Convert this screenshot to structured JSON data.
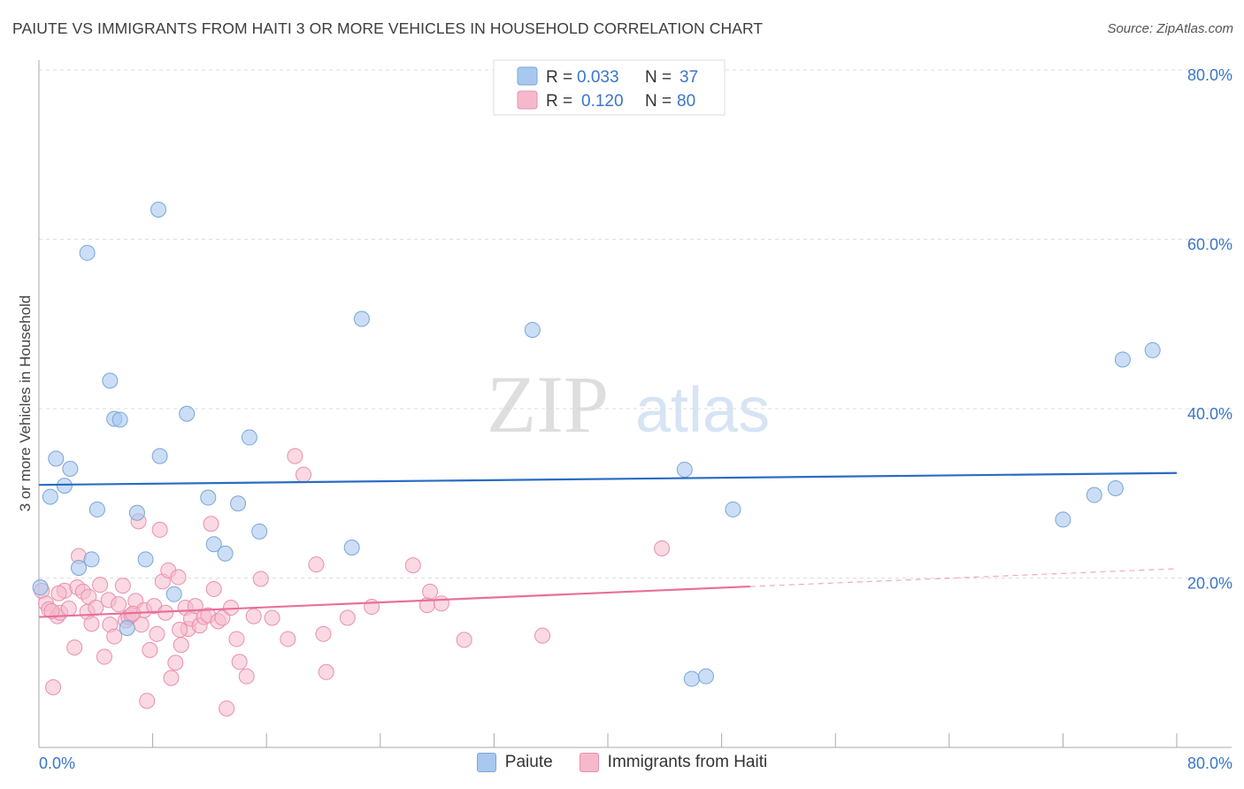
{
  "title": "PAIUTE VS IMMIGRANTS FROM HAITI 3 OR MORE VEHICLES IN HOUSEHOLD CORRELATION CHART",
  "source": "Source: ZipAtlas.com",
  "watermark": {
    "zip": "ZIP",
    "atlas": "atlas"
  },
  "colors": {
    "paiute_fill": "#a9c8f0",
    "paiute_stroke": "#7aa5d8",
    "paiute_line": "#2a6cc4",
    "haiti_fill": "#f6b9cc",
    "haiti_stroke": "#ea8fac",
    "haiti_line": "#e8709a",
    "value_text": "#3a76c8",
    "grid": "#dddddd"
  },
  "legend": [
    {
      "r_label": "R =",
      "r_value": "0.033",
      "n_label": "N =",
      "n_value": "37"
    },
    {
      "r_label": "R =",
      "r_value": "0.120",
      "n_label": "N =",
      "n_value": "80"
    }
  ],
  "chart_data": {
    "type": "scatter",
    "title": "PAIUTE VS IMMIGRANTS FROM HAITI 3 OR MORE VEHICLES IN HOUSEHOLD CORRELATION CHART",
    "xlabel": "",
    "ylabel": "3 or more Vehicles in Household",
    "xlim": [
      0,
      80
    ],
    "ylim": [
      0,
      80
    ],
    "x_tick_labels": [
      "0.0%",
      "80.0%"
    ],
    "y_tick_labels": [
      {
        "value": 20,
        "label": "20.0%"
      },
      {
        "value": 40,
        "label": "40.0%"
      },
      {
        "value": 60,
        "label": "60.0%"
      },
      {
        "value": 80,
        "label": "80.0%"
      }
    ],
    "grid": true,
    "legend_position": "top-center",
    "series": [
      {
        "name": "Paiute",
        "trend": {
          "x": [
            0,
            80
          ],
          "y": [
            31.0,
            32.4
          ]
        },
        "points": [
          [
            0.1,
            18.9
          ],
          [
            0.8,
            29.6
          ],
          [
            1.2,
            34.1
          ],
          [
            1.8,
            30.9
          ],
          [
            2.2,
            32.9
          ],
          [
            2.8,
            21.2
          ],
          [
            3.4,
            58.4
          ],
          [
            3.7,
            22.2
          ],
          [
            4.1,
            28.1
          ],
          [
            5.0,
            43.3
          ],
          [
            5.3,
            38.8
          ],
          [
            5.7,
            38.7
          ],
          [
            6.2,
            14.1
          ],
          [
            6.9,
            27.7
          ],
          [
            7.5,
            22.2
          ],
          [
            8.4,
            63.5
          ],
          [
            8.5,
            34.4
          ],
          [
            9.5,
            18.1
          ],
          [
            10.4,
            39.4
          ],
          [
            11.9,
            29.5
          ],
          [
            12.3,
            24.0
          ],
          [
            13.1,
            22.9
          ],
          [
            14.0,
            28.8
          ],
          [
            14.8,
            36.6
          ],
          [
            15.5,
            25.5
          ],
          [
            22.7,
            50.6
          ],
          [
            22.0,
            23.6
          ],
          [
            34.7,
            49.3
          ],
          [
            45.4,
            32.8
          ],
          [
            45.9,
            8.1
          ],
          [
            46.9,
            8.4
          ],
          [
            48.8,
            28.1
          ],
          [
            72.0,
            26.9
          ],
          [
            74.2,
            29.8
          ],
          [
            75.7,
            30.6
          ],
          [
            76.2,
            45.8
          ],
          [
            78.3,
            46.9
          ]
        ]
      },
      {
        "name": "Immigrants from Haiti",
        "trend": {
          "x": [
            0,
            50
          ],
          "y": [
            15.4,
            19.0
          ]
        },
        "trend_dashed": {
          "x": [
            50,
            80
          ],
          "y": [
            19.0,
            21.1
          ]
        },
        "points": [
          [
            0.2,
            18.5
          ],
          [
            0.5,
            17.0
          ],
          [
            0.7,
            16.3
          ],
          [
            1.0,
            7.1
          ],
          [
            1.3,
            15.5
          ],
          [
            1.5,
            15.9
          ],
          [
            1.8,
            18.5
          ],
          [
            2.1,
            16.4
          ],
          [
            2.5,
            11.8
          ],
          [
            2.7,
            18.9
          ],
          [
            2.8,
            22.6
          ],
          [
            3.1,
            18.4
          ],
          [
            3.4,
            16.0
          ],
          [
            3.5,
            17.8
          ],
          [
            3.7,
            14.6
          ],
          [
            4.0,
            16.5
          ],
          [
            4.3,
            19.2
          ],
          [
            4.6,
            10.7
          ],
          [
            4.9,
            17.4
          ],
          [
            5.0,
            14.5
          ],
          [
            5.3,
            13.1
          ],
          [
            5.6,
            16.9
          ],
          [
            5.9,
            19.1
          ],
          [
            6.1,
            15.0
          ],
          [
            6.3,
            15.4
          ],
          [
            6.5,
            15.6
          ],
          [
            6.8,
            17.3
          ],
          [
            7.0,
            26.7
          ],
          [
            7.2,
            14.5
          ],
          [
            7.4,
            16.2
          ],
          [
            7.6,
            5.5
          ],
          [
            7.8,
            11.5
          ],
          [
            8.1,
            16.7
          ],
          [
            8.3,
            13.4
          ],
          [
            8.5,
            25.7
          ],
          [
            8.7,
            19.6
          ],
          [
            8.9,
            15.9
          ],
          [
            9.1,
            20.9
          ],
          [
            9.3,
            8.2
          ],
          [
            9.6,
            10.0
          ],
          [
            9.8,
            20.1
          ],
          [
            10.0,
            12.1
          ],
          [
            10.3,
            16.5
          ],
          [
            10.5,
            14.0
          ],
          [
            10.7,
            15.2
          ],
          [
            11.0,
            16.7
          ],
          [
            11.3,
            14.4
          ],
          [
            11.6,
            15.4
          ],
          [
            11.9,
            15.6
          ],
          [
            12.1,
            26.4
          ],
          [
            12.3,
            18.7
          ],
          [
            12.6,
            14.9
          ],
          [
            12.9,
            15.3
          ],
          [
            13.2,
            4.6
          ],
          [
            13.5,
            16.5
          ],
          [
            13.9,
            12.8
          ],
          [
            14.1,
            10.1
          ],
          [
            14.6,
            8.4
          ],
          [
            15.1,
            15.5
          ],
          [
            15.6,
            19.9
          ],
          [
            16.4,
            15.3
          ],
          [
            17.5,
            12.8
          ],
          [
            18.0,
            34.4
          ],
          [
            18.6,
            32.2
          ],
          [
            19.5,
            21.6
          ],
          [
            20.0,
            13.4
          ],
          [
            20.2,
            8.9
          ],
          [
            21.7,
            15.3
          ],
          [
            23.4,
            16.6
          ],
          [
            26.3,
            21.5
          ],
          [
            27.3,
            16.8
          ],
          [
            27.5,
            18.4
          ],
          [
            28.3,
            17.0
          ],
          [
            29.9,
            12.7
          ],
          [
            35.4,
            13.2
          ],
          [
            43.8,
            23.5
          ],
          [
            0.9,
            16.1
          ],
          [
            1.4,
            18.2
          ],
          [
            6.6,
            15.8
          ],
          [
            9.9,
            13.9
          ]
        ]
      }
    ]
  },
  "bottom_legend": [
    {
      "label": "Paiute"
    },
    {
      "label": "Immigrants from Haiti"
    }
  ]
}
